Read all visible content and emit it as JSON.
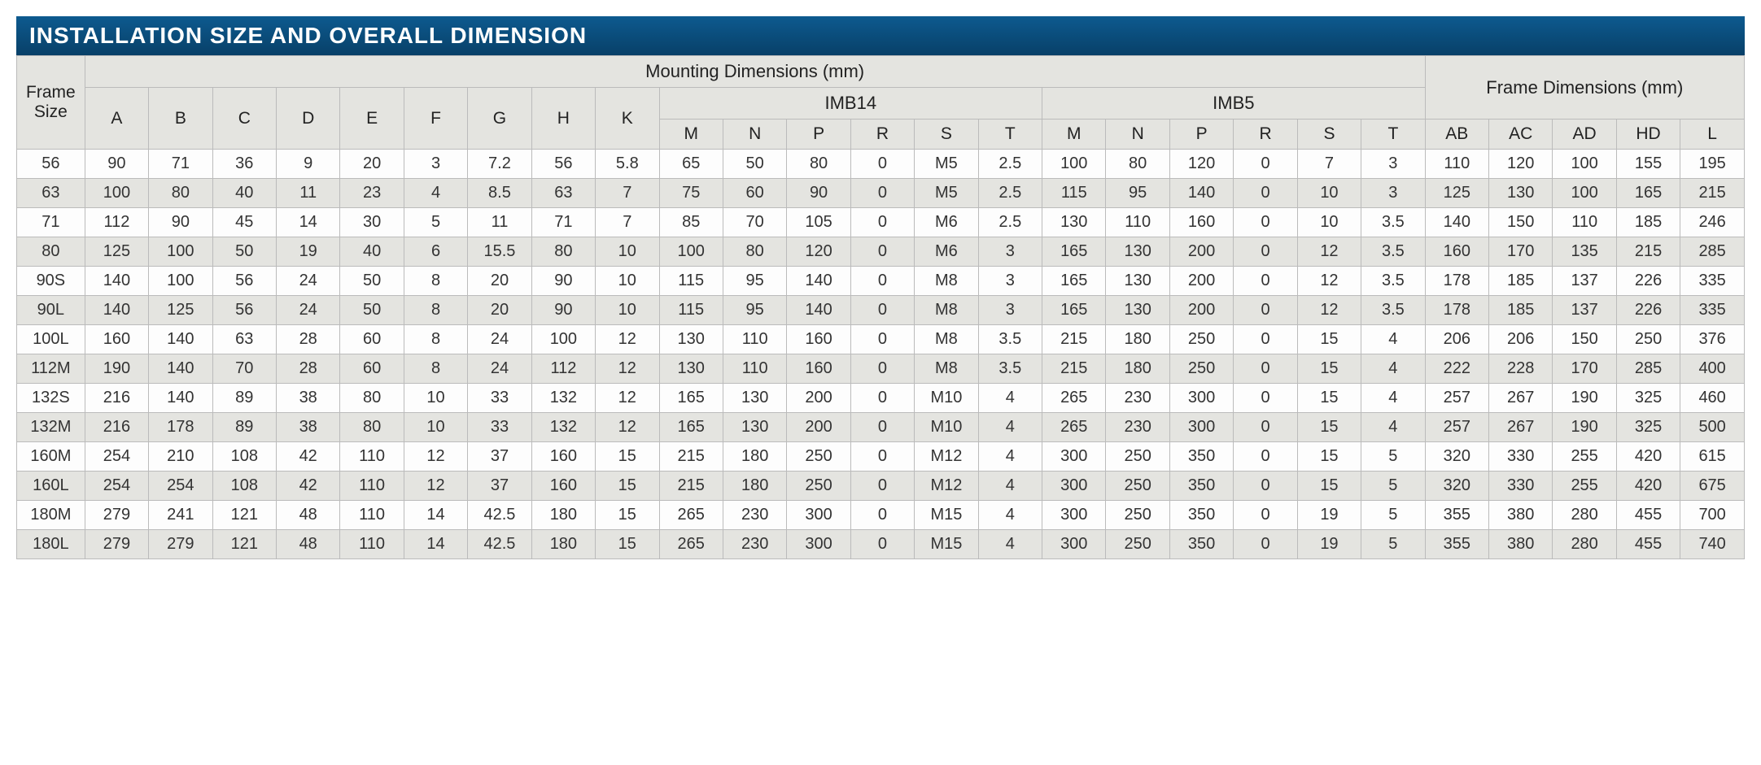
{
  "title": "INSTALLATION SIZE AND OVERALL DIMENSION",
  "table": {
    "type": "table",
    "background_color": "#ffffff",
    "title_bar_color": "#0a4a7a",
    "title_text_color": "#ffffff",
    "header_bg_color": "#e4e4e0",
    "row_odd_bg": "#fdfdfd",
    "row_even_bg": "#e4e4e0",
    "border_color": "#bbbbbb",
    "text_color": "#333333",
    "header_fontsize": 21,
    "cell_fontsize": 20,
    "header": {
      "frame_size": "Frame Size",
      "mounting": "Mounting Dimensions (mm)",
      "imb14": "IMB14",
      "imb5": "IMB5",
      "frame_dims": "Frame Dimensions (mm)",
      "base_cols": [
        "A",
        "B",
        "C",
        "D",
        "E",
        "F",
        "G",
        "H",
        "K"
      ],
      "imb14_cols": [
        "M",
        "N",
        "P",
        "R",
        "S",
        "T"
      ],
      "imb5_cols": [
        "M",
        "N",
        "P",
        "R",
        "S",
        "T"
      ],
      "frame_cols": [
        "AB",
        "AC",
        "AD",
        "HD",
        "L"
      ]
    },
    "rows": [
      {
        "frame": "56",
        "v": [
          "90",
          "71",
          "36",
          "9",
          "20",
          "3",
          "7.2",
          "56",
          "5.8",
          "65",
          "50",
          "80",
          "0",
          "M5",
          "2.5",
          "100",
          "80",
          "120",
          "0",
          "7",
          "3",
          "110",
          "120",
          "100",
          "155",
          "195"
        ]
      },
      {
        "frame": "63",
        "v": [
          "100",
          "80",
          "40",
          "11",
          "23",
          "4",
          "8.5",
          "63",
          "7",
          "75",
          "60",
          "90",
          "0",
          "M5",
          "2.5",
          "115",
          "95",
          "140",
          "0",
          "10",
          "3",
          "125",
          "130",
          "100",
          "165",
          "215"
        ]
      },
      {
        "frame": "71",
        "v": [
          "112",
          "90",
          "45",
          "14",
          "30",
          "5",
          "11",
          "71",
          "7",
          "85",
          "70",
          "105",
          "0",
          "M6",
          "2.5",
          "130",
          "110",
          "160",
          "0",
          "10",
          "3.5",
          "140",
          "150",
          "110",
          "185",
          "246"
        ]
      },
      {
        "frame": "80",
        "v": [
          "125",
          "100",
          "50",
          "19",
          "40",
          "6",
          "15.5",
          "80",
          "10",
          "100",
          "80",
          "120",
          "0",
          "M6",
          "3",
          "165",
          "130",
          "200",
          "0",
          "12",
          "3.5",
          "160",
          "170",
          "135",
          "215",
          "285"
        ]
      },
      {
        "frame": "90S",
        "v": [
          "140",
          "100",
          "56",
          "24",
          "50",
          "8",
          "20",
          "90",
          "10",
          "115",
          "95",
          "140",
          "0",
          "M8",
          "3",
          "165",
          "130",
          "200",
          "0",
          "12",
          "3.5",
          "178",
          "185",
          "137",
          "226",
          "335"
        ]
      },
      {
        "frame": "90L",
        "v": [
          "140",
          "125",
          "56",
          "24",
          "50",
          "8",
          "20",
          "90",
          "10",
          "115",
          "95",
          "140",
          "0",
          "M8",
          "3",
          "165",
          "130",
          "200",
          "0",
          "12",
          "3.5",
          "178",
          "185",
          "137",
          "226",
          "335"
        ]
      },
      {
        "frame": "100L",
        "v": [
          "160",
          "140",
          "63",
          "28",
          "60",
          "8",
          "24",
          "100",
          "12",
          "130",
          "110",
          "160",
          "0",
          "M8",
          "3.5",
          "215",
          "180",
          "250",
          "0",
          "15",
          "4",
          "206",
          "206",
          "150",
          "250",
          "376"
        ]
      },
      {
        "frame": "112M",
        "v": [
          "190",
          "140",
          "70",
          "28",
          "60",
          "8",
          "24",
          "112",
          "12",
          "130",
          "110",
          "160",
          "0",
          "M8",
          "3.5",
          "215",
          "180",
          "250",
          "0",
          "15",
          "4",
          "222",
          "228",
          "170",
          "285",
          "400"
        ]
      },
      {
        "frame": "132S",
        "v": [
          "216",
          "140",
          "89",
          "38",
          "80",
          "10",
          "33",
          "132",
          "12",
          "165",
          "130",
          "200",
          "0",
          "M10",
          "4",
          "265",
          "230",
          "300",
          "0",
          "15",
          "4",
          "257",
          "267",
          "190",
          "325",
          "460"
        ]
      },
      {
        "frame": "132M",
        "v": [
          "216",
          "178",
          "89",
          "38",
          "80",
          "10",
          "33",
          "132",
          "12",
          "165",
          "130",
          "200",
          "0",
          "M10",
          "4",
          "265",
          "230",
          "300",
          "0",
          "15",
          "4",
          "257",
          "267",
          "190",
          "325",
          "500"
        ]
      },
      {
        "frame": "160M",
        "v": [
          "254",
          "210",
          "108",
          "42",
          "110",
          "12",
          "37",
          "160",
          "15",
          "215",
          "180",
          "250",
          "0",
          "M12",
          "4",
          "300",
          "250",
          "350",
          "0",
          "15",
          "5",
          "320",
          "330",
          "255",
          "420",
          "615"
        ]
      },
      {
        "frame": "160L",
        "v": [
          "254",
          "254",
          "108",
          "42",
          "110",
          "12",
          "37",
          "160",
          "15",
          "215",
          "180",
          "250",
          "0",
          "M12",
          "4",
          "300",
          "250",
          "350",
          "0",
          "15",
          "5",
          "320",
          "330",
          "255",
          "420",
          "675"
        ]
      },
      {
        "frame": "180M",
        "v": [
          "279",
          "241",
          "121",
          "48",
          "110",
          "14",
          "42.5",
          "180",
          "15",
          "265",
          "230",
          "300",
          "0",
          "M15",
          "4",
          "300",
          "250",
          "350",
          "0",
          "19",
          "5",
          "355",
          "380",
          "280",
          "455",
          "700"
        ]
      },
      {
        "frame": "180L",
        "v": [
          "279",
          "279",
          "121",
          "48",
          "110",
          "14",
          "42.5",
          "180",
          "15",
          "265",
          "230",
          "300",
          "0",
          "M15",
          "4",
          "300",
          "250",
          "350",
          "0",
          "19",
          "5",
          "355",
          "380",
          "280",
          "455",
          "740"
        ]
      }
    ]
  }
}
